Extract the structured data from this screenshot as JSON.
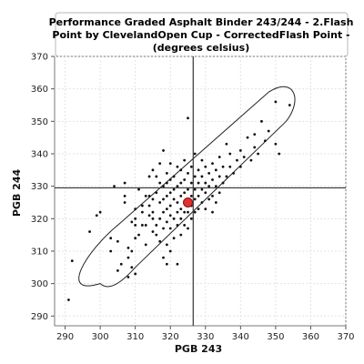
{
  "chart_data": {
    "type": "scatter",
    "title": "Performance Graded Asphalt Binder 243/244 - 2.Flash Point by ClevelandOpen Cup - CorrectedFlash Point - (degrees celsius)",
    "title_lines": [
      "Performance Graded Asphalt Binder 243/244 - 2.Flash",
      "Point by ClevelandOpen Cup - CorrectedFlash Point -",
      "(degrees celsius)"
    ],
    "xlabel": "PGB 243",
    "ylabel": "PGB 244",
    "xlim": [
      287,
      370
    ],
    "ylim": [
      287,
      370
    ],
    "xticks": [
      290,
      300,
      310,
      320,
      330,
      340,
      350,
      360,
      370
    ],
    "yticks": [
      290,
      300,
      310,
      320,
      330,
      340,
      350,
      360,
      370
    ],
    "grid": true,
    "crosshair": {
      "x": 326.5,
      "y": 329.5
    },
    "highlight_point": {
      "x": 325,
      "y": 325,
      "color": "#e03030"
    },
    "ellipse": {
      "cx": 326.5,
      "cy": 329.5,
      "corners": [
        [
          300,
          300
        ],
        [
          353,
          360
        ],
        [
          356,
          356
        ],
        [
          297,
          303
        ]
      ]
    },
    "points": [
      [
        291,
        295
      ],
      [
        292,
        307
      ],
      [
        297,
        316
      ],
      [
        299,
        321
      ],
      [
        300,
        322
      ],
      [
        303,
        310
      ],
      [
        303,
        314
      ],
      [
        304,
        330
      ],
      [
        305,
        304
      ],
      [
        305,
        313
      ],
      [
        306,
        306
      ],
      [
        307,
        325
      ],
      [
        307,
        327
      ],
      [
        307,
        331
      ],
      [
        308,
        302
      ],
      [
        308,
        308
      ],
      [
        308,
        311
      ],
      [
        309,
        305
      ],
      [
        309,
        310
      ],
      [
        309,
        319
      ],
      [
        310,
        303
      ],
      [
        310,
        314
      ],
      [
        310,
        318
      ],
      [
        310,
        320
      ],
      [
        310,
        323
      ],
      [
        311,
        315
      ],
      [
        311,
        329
      ],
      [
        312,
        318
      ],
      [
        312,
        322
      ],
      [
        312,
        324
      ],
      [
        313,
        312
      ],
      [
        313,
        318
      ],
      [
        313,
        327
      ],
      [
        314,
        321
      ],
      [
        314,
        324
      ],
      [
        314,
        327
      ],
      [
        314,
        333
      ],
      [
        315,
        316
      ],
      [
        315,
        320
      ],
      [
        315,
        322
      ],
      [
        315,
        326
      ],
      [
        315,
        335
      ],
      [
        316,
        315
      ],
      [
        316,
        318
      ],
      [
        316,
        328
      ],
      [
        316,
        333
      ],
      [
        317,
        313
      ],
      [
        317,
        320
      ],
      [
        317,
        325
      ],
      [
        317,
        331
      ],
      [
        317,
        337
      ],
      [
        318,
        308
      ],
      [
        318,
        317
      ],
      [
        318,
        322
      ],
      [
        318,
        326
      ],
      [
        318,
        330
      ],
      [
        318,
        341
      ],
      [
        319,
        306
      ],
      [
        319,
        312
      ],
      [
        319,
        319
      ],
      [
        319,
        323
      ],
      [
        319,
        327
      ],
      [
        319,
        331
      ],
      [
        319,
        334
      ],
      [
        320,
        310
      ],
      [
        320,
        317
      ],
      [
        320,
        321
      ],
      [
        320,
        324
      ],
      [
        320,
        328
      ],
      [
        320,
        332
      ],
      [
        320,
        337
      ],
      [
        321,
        314
      ],
      [
        321,
        320
      ],
      [
        321,
        326
      ],
      [
        321,
        329
      ],
      [
        321,
        333
      ],
      [
        322,
        306
      ],
      [
        322,
        318
      ],
      [
        322,
        322
      ],
      [
        322,
        325
      ],
      [
        322,
        330
      ],
      [
        322,
        336
      ],
      [
        323,
        315
      ],
      [
        323,
        320
      ],
      [
        323,
        323
      ],
      [
        323,
        327
      ],
      [
        323,
        331
      ],
      [
        323,
        335
      ],
      [
        324,
        318
      ],
      [
        324,
        322
      ],
      [
        324,
        325
      ],
      [
        324,
        328
      ],
      [
        324,
        332
      ],
      [
        324,
        338
      ],
      [
        325,
        317
      ],
      [
        325,
        322
      ],
      [
        325,
        326
      ],
      [
        325,
        329
      ],
      [
        325,
        334
      ],
      [
        325,
        351
      ],
      [
        326,
        320
      ],
      [
        326,
        324
      ],
      [
        326,
        327
      ],
      [
        326,
        331
      ],
      [
        326,
        336
      ],
      [
        327,
        322
      ],
      [
        327,
        326
      ],
      [
        327,
        329
      ],
      [
        327,
        333
      ],
      [
        327,
        340
      ],
      [
        328,
        323
      ],
      [
        328,
        327
      ],
      [
        328,
        331
      ],
      [
        328,
        335
      ],
      [
        329,
        325
      ],
      [
        329,
        329
      ],
      [
        329,
        333
      ],
      [
        329,
        338
      ],
      [
        330,
        323
      ],
      [
        330,
        328
      ],
      [
        330,
        331
      ],
      [
        330,
        336
      ],
      [
        331,
        326
      ],
      [
        331,
        330
      ],
      [
        331,
        334
      ],
      [
        332,
        322
      ],
      [
        332,
        327
      ],
      [
        332,
        332
      ],
      [
        332,
        337
      ],
      [
        333,
        325
      ],
      [
        333,
        330
      ],
      [
        333,
        335
      ],
      [
        334,
        328
      ],
      [
        334,
        333
      ],
      [
        334,
        339
      ],
      [
        335,
        331
      ],
      [
        335,
        336
      ],
      [
        336,
        333
      ],
      [
        336,
        343
      ],
      [
        337,
        336
      ],
      [
        337,
        340
      ],
      [
        338,
        334
      ],
      [
        339,
        338
      ],
      [
        340,
        336
      ],
      [
        340,
        341
      ],
      [
        341,
        339
      ],
      [
        342,
        345
      ],
      [
        343,
        338
      ],
      [
        344,
        342
      ],
      [
        344,
        346
      ],
      [
        345,
        340
      ],
      [
        346,
        350
      ],
      [
        347,
        344
      ],
      [
        348,
        347
      ],
      [
        350,
        343
      ],
      [
        350,
        356
      ],
      [
        351,
        340
      ],
      [
        354,
        355
      ]
    ]
  }
}
